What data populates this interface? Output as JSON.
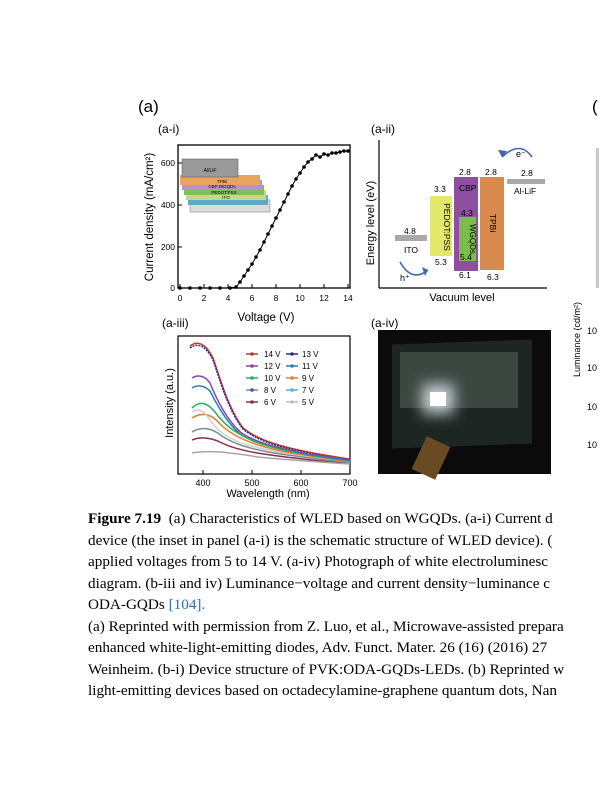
{
  "panels": {
    "a_label": "(a)",
    "b_label_partial": "(",
    "ai": "(a-i)",
    "aii": "(a-ii)",
    "aiii": "(a-iii)",
    "aiv": "(a-iv)"
  },
  "plot_ai": {
    "ylabel": "Current density (mA/cm²)",
    "xlabel": "Voltage (V)",
    "xticks": [
      "0",
      "2",
      "4",
      "6",
      "8",
      "10",
      "12",
      "14"
    ],
    "yticks": [
      "0",
      "200",
      "400",
      "600"
    ],
    "inset_layers": [
      "Al/LiF",
      "TPBi",
      "CBP:WGQDs",
      "PEDOT:PSS",
      "ITO"
    ]
  },
  "plot_aii": {
    "ylabel": "Energy level (eV)",
    "xlabel": "Vacuum level",
    "layers": [
      "ITO",
      "PEDOT:PSS",
      "CBP",
      "WGQDs",
      "TPBi",
      "Al-LiF"
    ],
    "levels": [
      "4.8",
      "3.3",
      "5.3",
      "2.8",
      "2.8",
      "2.8",
      "4.3",
      "5.4",
      "6.1",
      "6.3"
    ],
    "hole": "h⁺",
    "electron": "e⁻"
  },
  "plot_aiii": {
    "ylabel": "Intensity (a.u.)",
    "xlabel": "Wavelength (nm)",
    "xticks": [
      "400",
      "500",
      "600",
      "700"
    ],
    "legend": [
      "14 V",
      "13 V",
      "12 V",
      "11 V",
      "10 V",
      "9 V",
      "8 V",
      "7 V",
      "6 V",
      "5 V"
    ]
  },
  "partial_right": {
    "ylabel": "Luminance (cd/m²)",
    "ticks": [
      "10",
      "10",
      "10",
      "10"
    ]
  },
  "caption": {
    "figure_label": "Figure 7.19",
    "line1": "(a) Characteristics of WLED based on WGQDs. (a-i) Current d",
    "line2": "device (the inset in panel (a-i) is the schematic structure of WLED device). (",
    "line3": "applied voltages from 5 to 14 V. (a-iv) Photograph of white electroluminesc",
    "line4": "diagram. (b-iii and iv) Luminance−voltage and current density−luminance c",
    "line5_text": "ODA-GQDs ",
    "line5_ref": "[104].",
    "line6": "(a) Reprinted with permission from Z. Luo, et al., Microwave-assisted prepara",
    "line7": "enhanced white-light-emitting diodes, Adv. Funct. Mater. 26 (16) (2016) 27",
    "line8": "Weinheim. (b-i) Device structure of PVK:ODA-GQDs-LEDs. (b) Reprinted w",
    "line9": "light-emitting devices based on octadecylamine-graphene quantum dots, Nan"
  },
  "colors": {
    "accent_link": "#2a6fb5",
    "pedot": "#e3e86a",
    "cbp": "#8e4fa0",
    "wgqds": "#7bbd4b",
    "tpbi": "#d98a4f"
  }
}
